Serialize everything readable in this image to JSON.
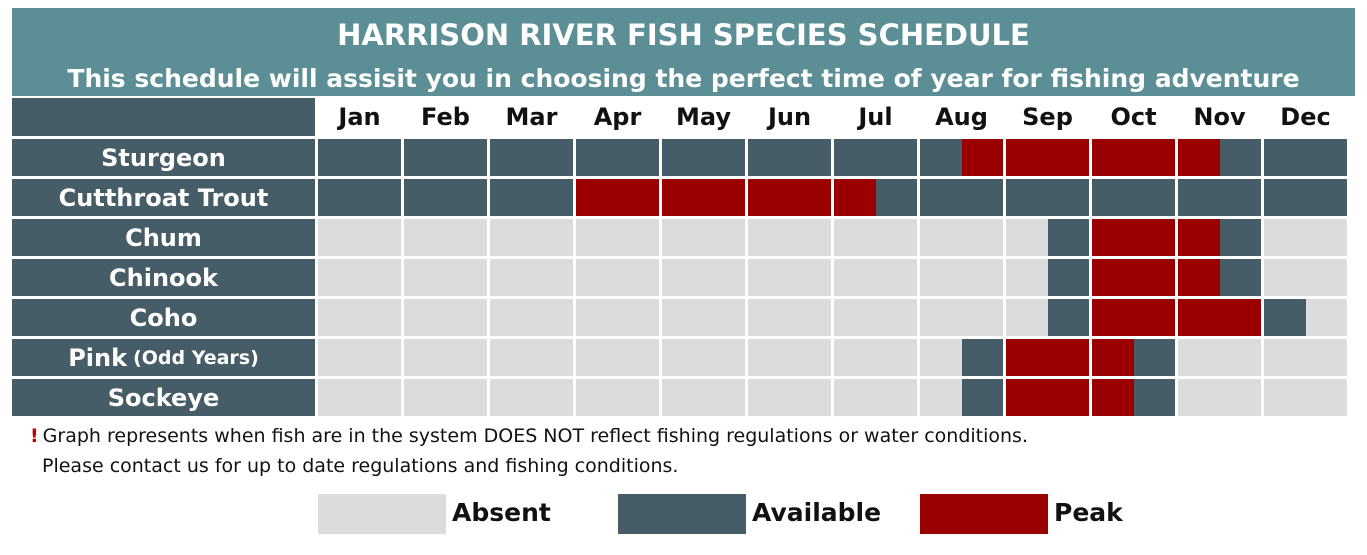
{
  "title": "HARRISON RIVER FISH SPECIES SCHEDULE",
  "subtitle": "This schedule will assisit you in choosing the perfect time of year for fishing adventure",
  "colors": {
    "absent": "#dcdcdc",
    "available": "#465c66",
    "peak": "#9b0000",
    "header": "#5b8e95"
  },
  "chart_data": {
    "type": "table",
    "months": [
      "Jan",
      "Feb",
      "Mar",
      "Apr",
      "May",
      "Jun",
      "Jul",
      "Aug",
      "Sep",
      "Oct",
      "Nov",
      "Dec"
    ],
    "rows": [
      {
        "name": "Sturgeon",
        "note": "",
        "segments": [
          {
            "from": 0,
            "to": 7.5,
            "status": "available"
          },
          {
            "from": 7.5,
            "to": 10.5,
            "status": "peak"
          },
          {
            "from": 10.5,
            "to": 12,
            "status": "available"
          }
        ]
      },
      {
        "name": "Cutthroat Trout",
        "note": "",
        "segments": [
          {
            "from": 0,
            "to": 3,
            "status": "available"
          },
          {
            "from": 3,
            "to": 6.5,
            "status": "peak"
          },
          {
            "from": 6.5,
            "to": 12,
            "status": "available"
          }
        ]
      },
      {
        "name": "Chum",
        "note": "",
        "segments": [
          {
            "from": 0,
            "to": 8.5,
            "status": "absent"
          },
          {
            "from": 8.5,
            "to": 9,
            "status": "available"
          },
          {
            "from": 9,
            "to": 10.5,
            "status": "peak"
          },
          {
            "from": 10.5,
            "to": 11,
            "status": "available"
          },
          {
            "from": 11,
            "to": 12,
            "status": "absent"
          }
        ]
      },
      {
        "name": "Chinook",
        "note": "",
        "segments": [
          {
            "from": 0,
            "to": 8.5,
            "status": "absent"
          },
          {
            "from": 8.5,
            "to": 9,
            "status": "available"
          },
          {
            "from": 9,
            "to": 10.5,
            "status": "peak"
          },
          {
            "from": 10.5,
            "to": 11,
            "status": "available"
          },
          {
            "from": 11,
            "to": 12,
            "status": "absent"
          }
        ]
      },
      {
        "name": "Coho",
        "note": "",
        "segments": [
          {
            "from": 0,
            "to": 8.5,
            "status": "absent"
          },
          {
            "from": 8.5,
            "to": 9,
            "status": "available"
          },
          {
            "from": 9,
            "to": 11,
            "status": "peak"
          },
          {
            "from": 11,
            "to": 11.5,
            "status": "available"
          },
          {
            "from": 11.5,
            "to": 12,
            "status": "absent"
          }
        ]
      },
      {
        "name": "Pink",
        "note": "(Odd Years)",
        "segments": [
          {
            "from": 0,
            "to": 7.5,
            "status": "absent"
          },
          {
            "from": 7.5,
            "to": 8,
            "status": "available"
          },
          {
            "from": 8,
            "to": 9.5,
            "status": "peak"
          },
          {
            "from": 9.5,
            "to": 10,
            "status": "available"
          },
          {
            "from": 10,
            "to": 12,
            "status": "absent"
          }
        ]
      },
      {
        "name": "Sockeye",
        "note": "",
        "segments": [
          {
            "from": 0,
            "to": 7.5,
            "status": "absent"
          },
          {
            "from": 7.5,
            "to": 8,
            "status": "available"
          },
          {
            "from": 8,
            "to": 9.5,
            "status": "peak"
          },
          {
            "from": 9.5,
            "to": 10,
            "status": "available"
          },
          {
            "from": 10,
            "to": 12,
            "status": "absent"
          }
        ]
      }
    ],
    "legend": [
      {
        "key": "absent",
        "label": "Absent"
      },
      {
        "key": "available",
        "label": "Available"
      },
      {
        "key": "peak",
        "label": "Peak"
      }
    ]
  },
  "footnote": {
    "mark": "!",
    "line1": "Graph represents when fish are in the system DOES NOT reflect fishing regulations or water conditions.",
    "line2": "Please contact us for up to date regulations and fishing conditions."
  }
}
